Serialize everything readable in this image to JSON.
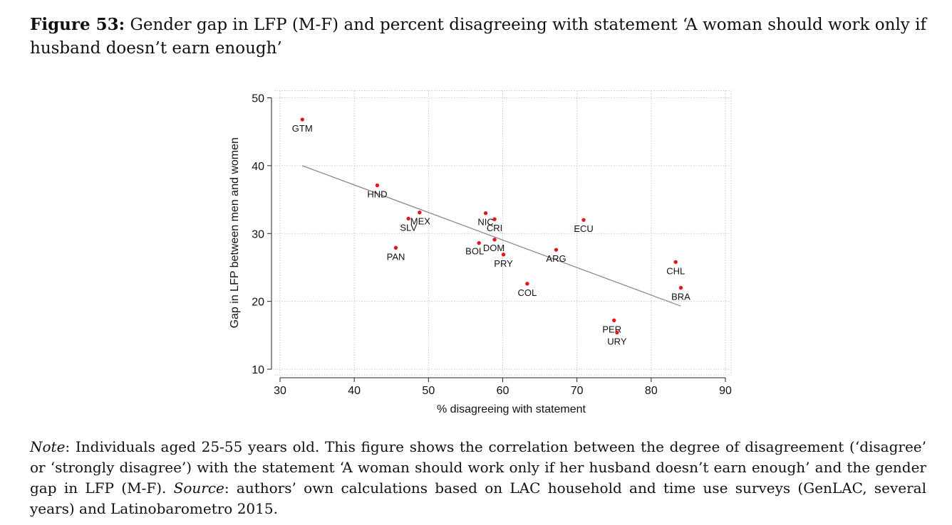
{
  "caption": {
    "figure_label": "Figure 53:",
    "text": "Gender gap in LFP (M-F) and percent disagreeing with statement ‘A woman should work only if husband doesn’t earn enough’"
  },
  "note": {
    "note_label": "Note",
    "note_text": ": Individuals aged 25-55 years old. This figure shows the correlation between the degree of disagreement (‘disagree’ or ‘strongly disagree’) with the statement ‘A woman should work only if her husband doesn’t earn enough’ and the gender gap in LFP (M-F). ",
    "source_label": "Source",
    "source_text": ": authors’ own calculations based on LAC household and time use surveys (GenLAC, several years) and Latinobarometro 2015."
  },
  "chart_data": {
    "type": "scatter",
    "xlabel": "% disagreeing with statement",
    "ylabel": "Gap in LFP between men and women",
    "xlim": [
      30,
      90
    ],
    "ylim": [
      10,
      50
    ],
    "xticks": [
      30,
      40,
      50,
      60,
      70,
      80,
      90
    ],
    "yticks": [
      10,
      20,
      30,
      40,
      50
    ],
    "grid": true,
    "marker_color": "#e8151b",
    "fit_line_color": "#8a8a8a",
    "fit_line": {
      "x": [
        33.0,
        84.0
      ],
      "y": [
        40.0,
        19.3
      ]
    },
    "points": [
      {
        "label": "GTM",
        "x": 33.0,
        "y": 46.8
      },
      {
        "label": "HND",
        "x": 43.1,
        "y": 37.1
      },
      {
        "label": "SLV",
        "x": 47.3,
        "y": 32.2
      },
      {
        "label": "MEX",
        "x": 48.8,
        "y": 33.1
      },
      {
        "label": "PAN",
        "x": 45.6,
        "y": 27.9
      },
      {
        "label": "NIC",
        "x": 57.7,
        "y": 33.0
      },
      {
        "label": "CRI",
        "x": 58.9,
        "y": 32.1
      },
      {
        "label": "BOL",
        "x": 56.8,
        "y": 28.6
      },
      {
        "label": "DOM",
        "x": 58.9,
        "y": 29.1
      },
      {
        "label": "PRY",
        "x": 60.1,
        "y": 26.9
      },
      {
        "label": "ARG",
        "x": 67.2,
        "y": 27.6
      },
      {
        "label": "ECU",
        "x": 70.9,
        "y": 32.0
      },
      {
        "label": "COL",
        "x": 63.3,
        "y": 22.6
      },
      {
        "label": "CHL",
        "x": 83.3,
        "y": 25.8
      },
      {
        "label": "BRA",
        "x": 84.0,
        "y": 22.0
      },
      {
        "label": "PER",
        "x": 75.0,
        "y": 17.2
      },
      {
        "label": "URY",
        "x": 75.4,
        "y": 15.4
      }
    ]
  }
}
